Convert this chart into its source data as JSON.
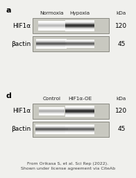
{
  "fig_width": 1.96,
  "fig_height": 2.56,
  "dpi": 100,
  "bg_color": "#f0f0ed",
  "panel_a_label": "a",
  "panel_d_label": "d",
  "panel_a_col_labels": [
    "Normoxia",
    "Hypoxia",
    "kDa"
  ],
  "panel_d_col_labels": [
    "Control",
    "HIF1α-OE",
    "kDa"
  ],
  "row_labels_a": [
    "HIF1α",
    "βactin"
  ],
  "row_labels_d": [
    "HIF1α",
    "βactin"
  ],
  "kda_labels_a": [
    "120",
    "45"
  ],
  "kda_labels_d": [
    "120",
    "45"
  ],
  "citation": "From Orikasa S, et al. Sci Rep (2022).\nShown under license agreement via CiteAb",
  "blot_bg": "#c8c8c0",
  "blot_border": "#888880"
}
